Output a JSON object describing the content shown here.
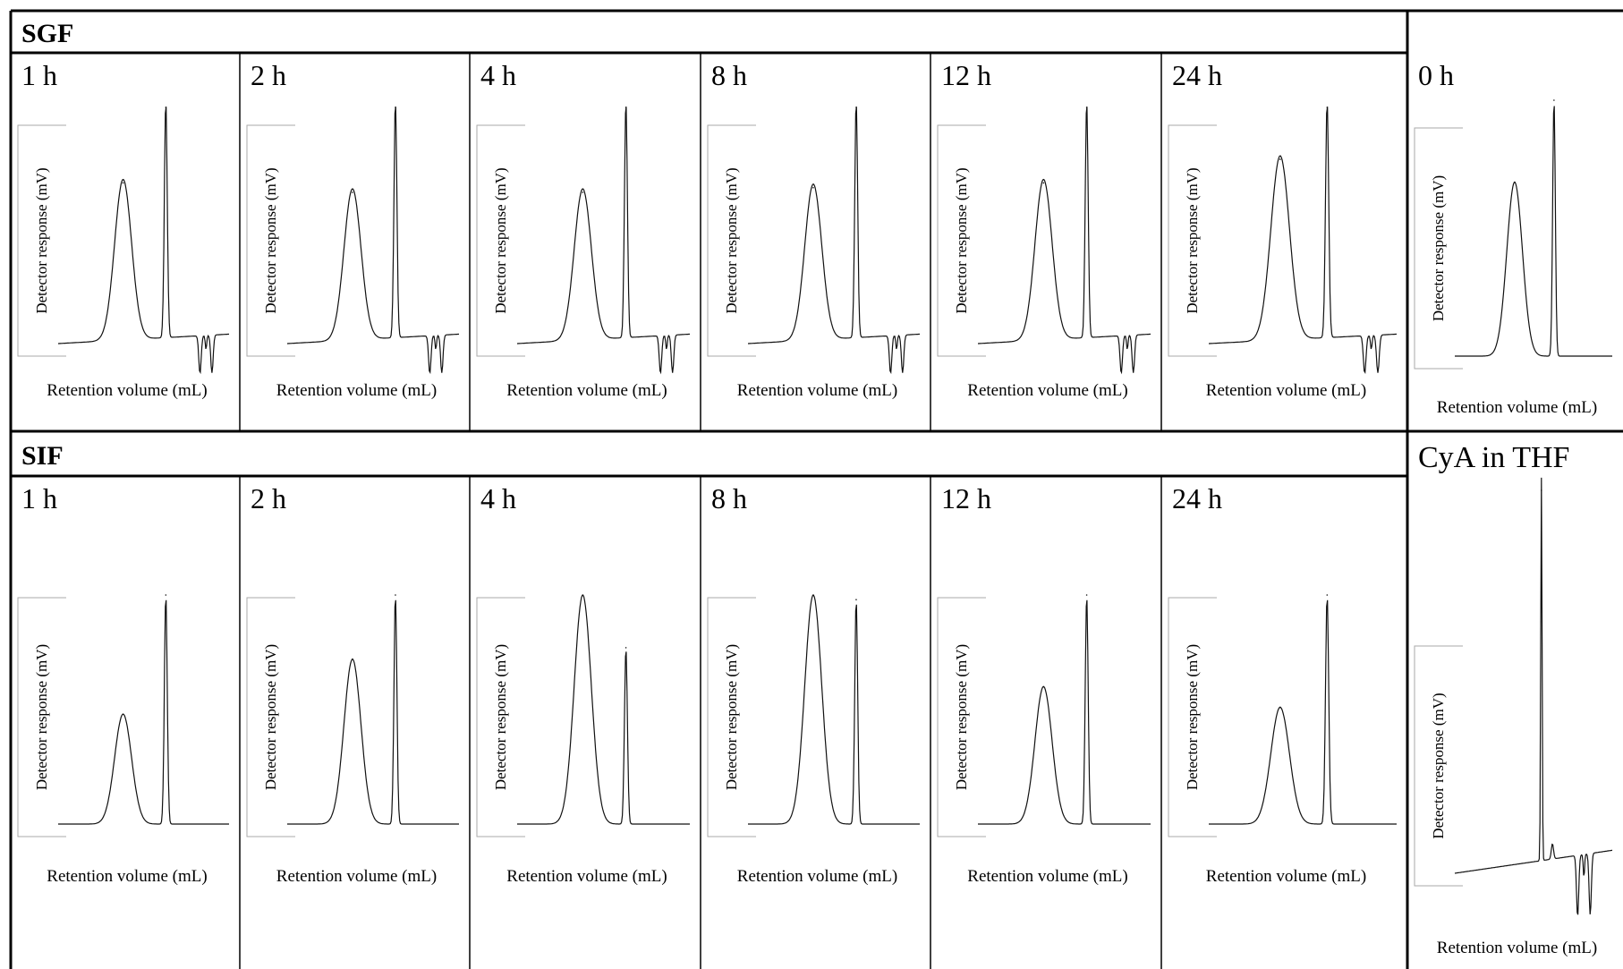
{
  "figure": {
    "sections": [
      {
        "label": "SGF"
      },
      {
        "label": "SIF"
      }
    ],
    "reference_panels": [
      {
        "label": "0 h"
      },
      {
        "label": "CyA in THF"
      }
    ],
    "colors": {
      "line": "#111111",
      "border": "#000000",
      "axis": "#aaaaaa"
    }
  },
  "chart_data": [
    {
      "type": "line",
      "group": "SGF",
      "title": "1 h",
      "xlabel": "Retention volume (mL)",
      "ylabel": "Detector response (mV)",
      "peaks": [
        {
          "rel_height": 0.68,
          "kind": "broad"
        },
        {
          "rel_height": 1.0,
          "kind": "sharp"
        }
      ],
      "negative_dips": 2
    },
    {
      "type": "line",
      "group": "SGF",
      "title": "2 h",
      "xlabel": "Retention volume (mL)",
      "ylabel": "Detector response (mV)",
      "peaks": [
        {
          "rel_height": 0.64,
          "kind": "broad"
        },
        {
          "rel_height": 1.0,
          "kind": "sharp"
        }
      ],
      "negative_dips": 2
    },
    {
      "type": "line",
      "group": "SGF",
      "title": "4 h",
      "xlabel": "Retention volume (mL)",
      "ylabel": "Detector response (mV)",
      "peaks": [
        {
          "rel_height": 0.64,
          "kind": "broad"
        },
        {
          "rel_height": 1.0,
          "kind": "sharp"
        }
      ],
      "negative_dips": 2
    },
    {
      "type": "line",
      "group": "SGF",
      "title": "8 h",
      "xlabel": "Retention volume (mL)",
      "ylabel": "Detector response (mV)",
      "peaks": [
        {
          "rel_height": 0.66,
          "kind": "broad"
        },
        {
          "rel_height": 1.0,
          "kind": "sharp"
        }
      ],
      "negative_dips": 2
    },
    {
      "type": "line",
      "group": "SGF",
      "title": "12 h",
      "xlabel": "Retention volume (mL)",
      "ylabel": "Detector response (mV)",
      "peaks": [
        {
          "rel_height": 0.68,
          "kind": "broad"
        },
        {
          "rel_height": 1.0,
          "kind": "sharp"
        }
      ],
      "negative_dips": 2
    },
    {
      "type": "line",
      "group": "SGF",
      "title": "24 h",
      "xlabel": "Retention volume (mL)",
      "ylabel": "Detector response (mV)",
      "peaks": [
        {
          "rel_height": 0.78,
          "kind": "broad"
        },
        {
          "rel_height": 1.0,
          "kind": "sharp"
        }
      ],
      "negative_dips": 2
    },
    {
      "type": "line",
      "group": "reference",
      "title": "0 h",
      "xlabel": "Retention volume (mL)",
      "ylabel": "Detector response (mV)",
      "peaks": [
        {
          "rel_height": 0.68,
          "kind": "broad"
        },
        {
          "rel_height": 1.0,
          "kind": "sharp"
        }
      ],
      "negative_dips": 0
    },
    {
      "type": "line",
      "group": "SIF",
      "title": "1 h",
      "xlabel": "Retention volume (mL)",
      "ylabel": "Detector response (mV)",
      "peaks": [
        {
          "rel_height": 0.48,
          "kind": "broad"
        },
        {
          "rel_height": 1.0,
          "kind": "sharp"
        }
      ],
      "negative_dips": 0
    },
    {
      "type": "line",
      "group": "SIF",
      "title": "2 h",
      "xlabel": "Retention volume (mL)",
      "ylabel": "Detector response (mV)",
      "peaks": [
        {
          "rel_height": 0.72,
          "kind": "broad"
        },
        {
          "rel_height": 1.0,
          "kind": "sharp"
        }
      ],
      "negative_dips": 0
    },
    {
      "type": "line",
      "group": "SIF",
      "title": "4 h",
      "xlabel": "Retention volume (mL)",
      "ylabel": "Detector response (mV)",
      "peaks": [
        {
          "rel_height": 1.0,
          "kind": "broad"
        },
        {
          "rel_height": 0.77,
          "kind": "sharp"
        }
      ],
      "negative_dips": 0
    },
    {
      "type": "line",
      "group": "SIF",
      "title": "8 h",
      "xlabel": "Retention volume (mL)",
      "ylabel": "Detector response (mV)",
      "peaks": [
        {
          "rel_height": 1.0,
          "kind": "broad"
        },
        {
          "rel_height": 0.98,
          "kind": "sharp"
        }
      ],
      "negative_dips": 0
    },
    {
      "type": "line",
      "group": "SIF",
      "title": "12 h",
      "xlabel": "Retention volume (mL)",
      "ylabel": "Detector response (mV)",
      "peaks": [
        {
          "rel_height": 0.6,
          "kind": "broad"
        },
        {
          "rel_height": 1.0,
          "kind": "sharp"
        }
      ],
      "negative_dips": 0
    },
    {
      "type": "line",
      "group": "SIF",
      "title": "24 h",
      "xlabel": "Retention volume (mL)",
      "ylabel": "Detector response (mV)",
      "peaks": [
        {
          "rel_height": 0.51,
          "kind": "broad"
        },
        {
          "rel_height": 1.0,
          "kind": "sharp"
        }
      ],
      "negative_dips": 0
    },
    {
      "type": "line",
      "group": "reference",
      "title": "CyA in THF",
      "xlabel": "Retention volume (mL)",
      "ylabel": "Detector response (mV)",
      "peaks": [
        {
          "rel_height": 1.0,
          "kind": "sharp"
        }
      ],
      "negative_dips": 2
    }
  ]
}
